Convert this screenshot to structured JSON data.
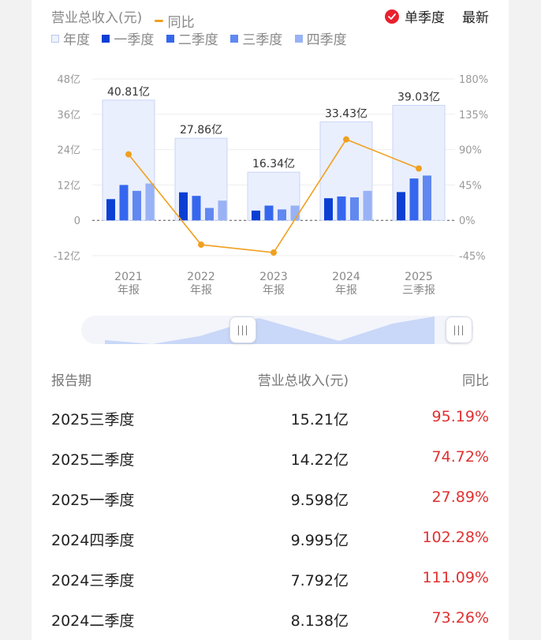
{
  "legend": {
    "metric": "营业总收入(元)",
    "line": "同比",
    "year": "年度",
    "q1": "一季度",
    "q2": "二季度",
    "q3": "三季度",
    "q4": "四季度"
  },
  "toggle": {
    "label": "单季度",
    "latest": "最新"
  },
  "colors": {
    "year_fill": "#eaeffd",
    "q1": "#0b3fd4",
    "q2": "#3567ee",
    "q3": "#6088f0",
    "q4": "#98b2f5",
    "line": "#f0a020",
    "positive": "#e03131"
  },
  "chart_data": {
    "type": "bar",
    "y_left_ticks": [
      "48亿",
      "36亿",
      "24亿",
      "12亿",
      "0",
      "-12亿"
    ],
    "y_right_ticks": [
      "180%",
      "135%",
      "90%",
      "45%",
      "0%",
      "-45%"
    ],
    "ylim": [
      -12,
      48
    ],
    "y2lim": [
      -45,
      180
    ],
    "categories": [
      {
        "year": "2021",
        "period": "年报"
      },
      {
        "year": "2022",
        "period": "年报"
      },
      {
        "year": "2023",
        "period": "年报"
      },
      {
        "year": "2024",
        "period": "年报"
      },
      {
        "year": "2025",
        "period": "三季报"
      }
    ],
    "annual": [
      40.81,
      27.86,
      16.34,
      33.43,
      39.03
    ],
    "annual_labels": [
      "40.81亿",
      "27.86亿",
      "16.34亿",
      "33.43亿",
      "39.03亿"
    ],
    "series": [
      {
        "name": "一季度",
        "values": [
          7.2,
          9.5,
          3.3,
          7.5,
          9.6
        ]
      },
      {
        "name": "二季度",
        "values": [
          12.0,
          8.3,
          5.0,
          8.1,
          14.2
        ]
      },
      {
        "name": "三季度",
        "values": [
          10.0,
          4.2,
          3.7,
          7.8,
          15.2
        ]
      },
      {
        "name": "四季度",
        "values": [
          12.5,
          6.7,
          5.0,
          10.0,
          null
        ]
      }
    ],
    "yoy": [
      84,
      -31,
      -41,
      103,
      66
    ]
  },
  "table": {
    "headers": [
      "报告期",
      "营业总收入(元)",
      "同比"
    ],
    "rows": [
      {
        "period": "2025三季度",
        "revenue": "15.21亿",
        "yoy": "95.19%"
      },
      {
        "period": "2025二季度",
        "revenue": "14.22亿",
        "yoy": "74.72%"
      },
      {
        "period": "2025一季度",
        "revenue": "9.598亿",
        "yoy": "27.89%"
      },
      {
        "period": "2024四季度",
        "revenue": "9.995亿",
        "yoy": "102.28%"
      },
      {
        "period": "2024三季度",
        "revenue": "7.792亿",
        "yoy": "111.09%"
      },
      {
        "period": "2024二季度",
        "revenue": "8.138亿",
        "yoy": "73.26%"
      }
    ]
  }
}
